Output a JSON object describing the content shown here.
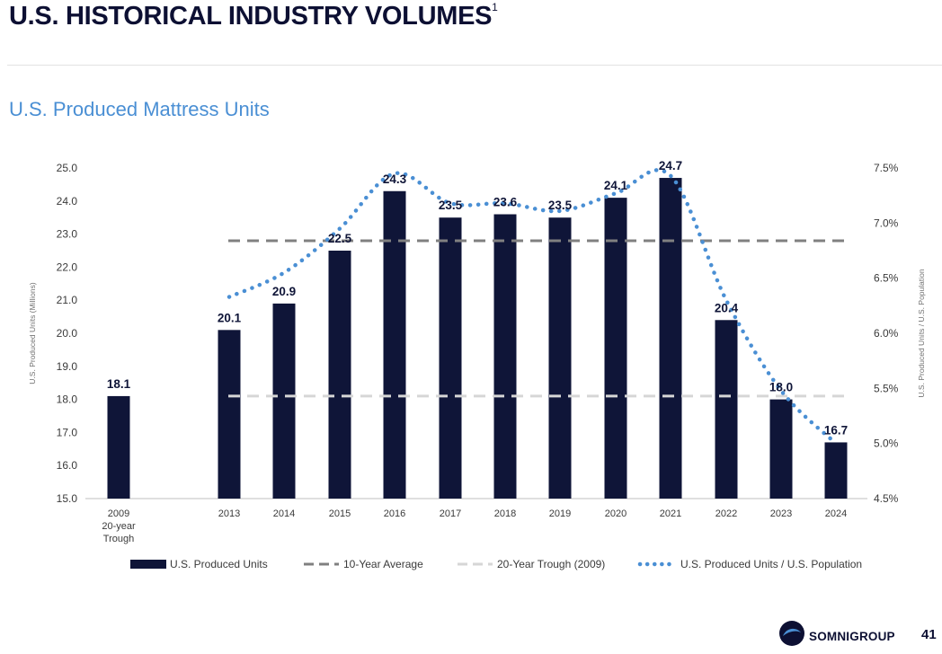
{
  "header": {
    "title": "U.S. HISTORICAL INDUSTRY VOLUMES",
    "footnote_marker": "1"
  },
  "subtitle": "U.S. Produced Mattress Units",
  "chart_data": {
    "type": "bar",
    "title": "U.S. Produced Mattress Units",
    "ylabel": "U.S. Produced Units (Millions)",
    "y2label": "U.S. Produced Units / U.S. Population",
    "ylim": [
      15.0,
      25.0
    ],
    "y2lim": [
      4.5,
      7.5
    ],
    "yticks": [
      "15.0",
      "16.0",
      "17.0",
      "18.0",
      "19.0",
      "20.0",
      "21.0",
      "22.0",
      "23.0",
      "24.0",
      "25.0"
    ],
    "y2ticks": [
      "4.5%",
      "5.0%",
      "5.5%",
      "6.0%",
      "6.5%",
      "7.0%",
      "7.5%"
    ],
    "categories": [
      {
        "label": "2009",
        "sublabel_1": "20-year",
        "sublabel_2": "Trough"
      },
      {
        "label": "2013"
      },
      {
        "label": "2014"
      },
      {
        "label": "2015"
      },
      {
        "label": "2016"
      },
      {
        "label": "2017"
      },
      {
        "label": "2018"
      },
      {
        "label": "2019"
      },
      {
        "label": "2020"
      },
      {
        "label": "2021"
      },
      {
        "label": "2022"
      },
      {
        "label": "2023"
      },
      {
        "label": "2024"
      }
    ],
    "series": [
      {
        "name": "U.S. Produced Units",
        "kind": "bar",
        "color": "#0f1538",
        "values": [
          18.1,
          20.1,
          20.9,
          22.5,
          24.3,
          23.5,
          23.6,
          23.5,
          24.1,
          24.7,
          20.4,
          18.0,
          16.7
        ],
        "data_labels": [
          "18.1",
          "20.1",
          "20.9",
          "22.5",
          "24.3",
          "23.5",
          "23.6",
          "23.5",
          "24.1",
          "24.7",
          "20.4",
          "18.0",
          "16.7"
        ]
      },
      {
        "name": "10-Year Average",
        "kind": "reference-line",
        "color": "#808080",
        "value": 22.8
      },
      {
        "name": "20-Year Trough (2009)",
        "kind": "reference-line",
        "color": "#d6d6d6",
        "value": 18.1
      },
      {
        "name": "U.S. Produced Units / U.S. Population",
        "kind": "dotted-line",
        "axis": "right",
        "color": "#4a8fd4",
        "x": [
          "2013",
          "2014",
          "2015",
          "2016",
          "2017",
          "2018",
          "2019",
          "2020",
          "2021",
          "2022",
          "2023",
          "2024"
        ],
        "values": [
          6.33,
          6.55,
          6.95,
          7.45,
          7.18,
          7.18,
          7.11,
          7.27,
          7.43,
          6.3,
          5.48,
          5.0
        ]
      }
    ],
    "legend": [
      {
        "label": "U.S. Produced Units",
        "style": "bar"
      },
      {
        "label": "10-Year Average",
        "style": "dash-dark"
      },
      {
        "label": "20-Year Trough (2009)",
        "style": "dash-light"
      },
      {
        "label": "U.S. Produced Units / U.S. Population",
        "style": "dots"
      }
    ],
    "legend_position": "bottom"
  },
  "footer": {
    "brand": "SOMNIGROUP",
    "page_number": "41"
  }
}
